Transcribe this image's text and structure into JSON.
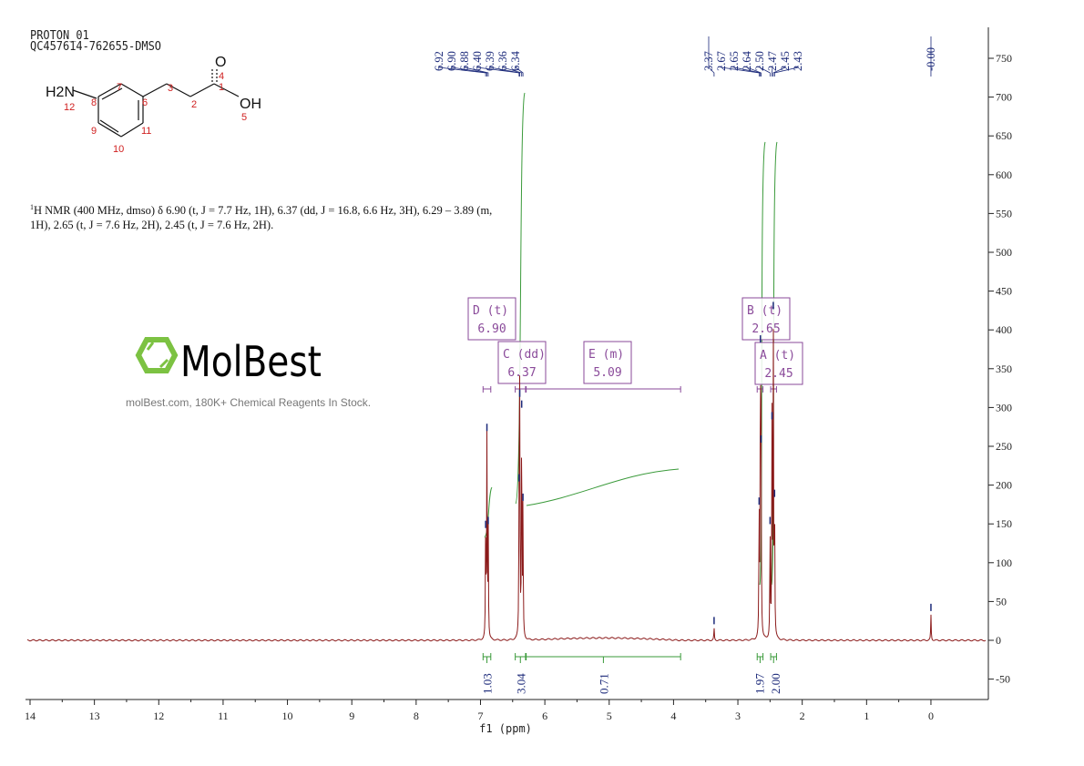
{
  "header": {
    "line1": "PROTON_01",
    "line2": "QC457614-762655-DMSO"
  },
  "structure": {
    "atoms": {
      "amine": "H2N",
      "carbonyl_o": "O",
      "hydroxyl": "OH"
    },
    "numbers": [
      "1",
      "2",
      "3",
      "4",
      "5",
      "6",
      "7",
      "8",
      "9",
      "10",
      "11",
      "12"
    ]
  },
  "description": {
    "sup": "1",
    "text": "H NMR (400 MHz, dmso) δ 6.90 (t, J = 7.7 Hz, 1H), 6.37 (dd, J = 16.8, 6.6 Hz, 3H), 6.29 – 3.89 (m, 1H), 2.65 (t, J = 7.6 Hz, 2H), 2.45 (t, J = 7.6 Hz, 2H)."
  },
  "watermark": {
    "brand": "MolBest",
    "tagline": "molBest.com, 180K+ Chemical Reagents In Stock."
  },
  "colors": {
    "spectrum": "#8b1a1a",
    "integral": "#3a9a3a",
    "peak_label": "#1c2a7a",
    "multiplet": "#8a4a9a",
    "logo": "#7cc242"
  },
  "chart_data": {
    "type": "line",
    "xlabel": "f1 (ppm)",
    "ylabel": "",
    "xlim": [
      14,
      -0.85
    ],
    "ylim": [
      -76,
      790
    ],
    "x_reversed": true,
    "x_ticks": [
      "14",
      "13",
      "12",
      "11",
      "10",
      "9",
      "8",
      "7",
      "6",
      "5",
      "4",
      "3",
      "2",
      "1",
      "0"
    ],
    "y_ticks": [
      "750",
      "700",
      "650",
      "600",
      "550",
      "500",
      "450",
      "400",
      "350",
      "300",
      "250",
      "200",
      "150",
      "100",
      "50",
      "0",
      "-50"
    ],
    "grid": false,
    "peak_labels": [
      "6.92",
      "6.90",
      "6.88",
      "6.40",
      "6.39",
      "6.36",
      "6.34",
      "3.37",
      "2.67",
      "2.65",
      "2.64",
      "2.50",
      "2.47",
      "2.45",
      "2.43",
      "-0.00"
    ],
    "peaks": [
      {
        "ppm": 6.92,
        "intensity": 140
      },
      {
        "ppm": 6.9,
        "intensity": 265
      },
      {
        "ppm": 6.88,
        "intensity": 145
      },
      {
        "ppm": 6.4,
        "intensity": 200
      },
      {
        "ppm": 6.39,
        "intensity": 309
      },
      {
        "ppm": 6.36,
        "intensity": 295
      },
      {
        "ppm": 6.34,
        "intensity": 175
      },
      {
        "ppm": 3.37,
        "intensity": 16
      },
      {
        "ppm": 2.67,
        "intensity": 170
      },
      {
        "ppm": 2.65,
        "intensity": 379
      },
      {
        "ppm": 2.64,
        "intensity": 250
      },
      {
        "ppm": 2.5,
        "intensity": 145
      },
      {
        "ppm": 2.47,
        "intensity": 280
      },
      {
        "ppm": 2.45,
        "intensity": 422
      },
      {
        "ppm": 2.43,
        "intensity": 180
      },
      {
        "ppm": 0.0,
        "intensity": 33
      }
    ],
    "broad_hump": {
      "from": 6.29,
      "to": 3.89,
      "intensity": 3
    },
    "multiplets": [
      {
        "label": "D (t)",
        "shift": "6.90",
        "range": [
          6.96,
          6.84
        ]
      },
      {
        "label": "C (dd)",
        "shift": "6.37",
        "range": [
          6.46,
          6.3
        ]
      },
      {
        "label": "E (m)",
        "shift": "5.09",
        "range": [
          6.29,
          3.89
        ]
      },
      {
        "label": "B (t)",
        "shift": "2.65",
        "range": [
          2.7,
          2.61
        ]
      },
      {
        "label": "A (t)",
        "shift": "2.45",
        "range": [
          2.49,
          2.4
        ]
      }
    ],
    "integrals": [
      {
        "value": "1.03",
        "range": [
          6.96,
          6.84
        ]
      },
      {
        "value": "3.04",
        "range": [
          6.46,
          6.3
        ]
      },
      {
        "value": "0.71",
        "range": [
          6.29,
          3.89
        ]
      },
      {
        "value": "1.97",
        "range": [
          2.7,
          2.61
        ]
      },
      {
        "value": "2.00",
        "range": [
          2.49,
          2.4
        ]
      }
    ]
  }
}
